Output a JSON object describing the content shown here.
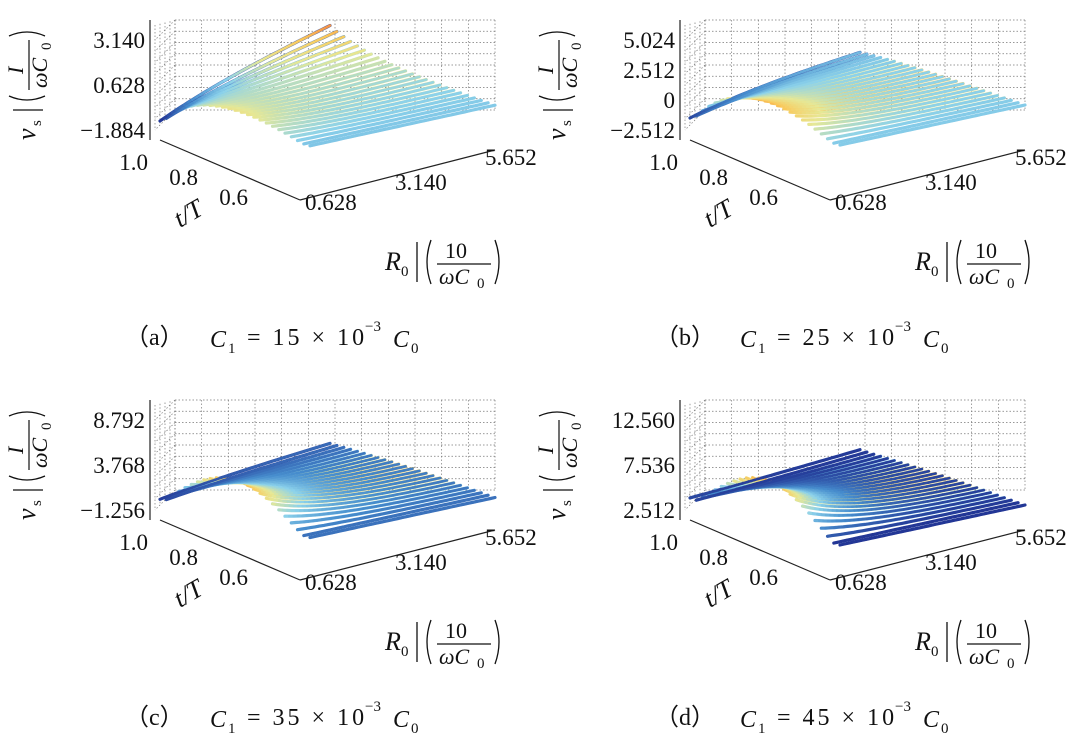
{
  "figure": {
    "z_unit_numerator": "I",
    "unit_omega": "ω",
    "unit_C0_letter": "C",
    "unit_C0_sub": "0",
    "z_var": "v",
    "z_var_sub": "s",
    "x_var": "R",
    "x_var_sub": "0",
    "x_unit_numerator": "10",
    "y_label": "t/T"
  },
  "colors": {
    "low": "#2b3e9e",
    "mid_low": "#7ec8e8",
    "mid": "#e8e38c",
    "mid_high": "#f6a04a",
    "high": "#c8243a",
    "peak": "#5a0a14",
    "grid": "#555555"
  },
  "chart_data": [
    {
      "type": "surface",
      "caption_label": "（a）",
      "caption_c1": "C",
      "caption_c1_sub": "1",
      "caption_eq": "= 15 × 10",
      "caption_exp": "−3",
      "caption_c0": "C",
      "caption_c0_sub": "0",
      "z_ticks": [
        "3.140",
        "0.628",
        "−1.884"
      ],
      "zlim": [
        -1.884,
        3.14
      ],
      "x_ticks": [
        "0.628",
        "3.140",
        "5.652"
      ],
      "xlim": [
        0.628,
        5.652
      ],
      "y_ticks": [
        "1.0",
        "0.8",
        "0.6"
      ],
      "ylim": [
        0.5,
        1.0
      ],
      "grid": true,
      "peak": {
        "x": 0.628,
        "t": 0.75,
        "z": 1.2
      },
      "ridge_high_side": {
        "x": 5.652,
        "t": 1.0,
        "z": 3.14
      },
      "trough": {
        "x": 0.628,
        "t": 1.0,
        "z": -1.884
      }
    },
    {
      "type": "surface",
      "caption_label": "（b）",
      "caption_c1": "C",
      "caption_c1_sub": "1",
      "caption_eq": "= 25 × 10",
      "caption_exp": "−3",
      "caption_c0": "C",
      "caption_c0_sub": "0",
      "z_ticks": [
        "5.024",
        "2.512",
        "0",
        "−2.512"
      ],
      "zlim": [
        -2.512,
        5.024
      ],
      "x_ticks": [
        "0.628",
        "3.140",
        "5.652"
      ],
      "xlim": [
        0.628,
        5.652
      ],
      "y_ticks": [
        "1.0",
        "0.8",
        "0.6"
      ],
      "ylim": [
        0.5,
        1.0
      ],
      "grid": true,
      "peak": {
        "x": 0.628,
        "t": 0.75,
        "z": 3.0
      },
      "trough": {
        "x": 0.628,
        "t": 1.0,
        "z": -2.512
      }
    },
    {
      "type": "surface",
      "caption_label": "（c）",
      "caption_c1": "C",
      "caption_c1_sub": "1",
      "caption_eq": "= 35 × 10",
      "caption_exp": "−3",
      "caption_c0": "C",
      "caption_c0_sub": "0",
      "z_ticks": [
        "8.792",
        "3.768",
        "−1.256"
      ],
      "zlim": [
        -1.256,
        8.792
      ],
      "x_ticks": [
        "0.628",
        "3.140",
        "5.652"
      ],
      "xlim": [
        0.628,
        5.652
      ],
      "y_ticks": [
        "1.0",
        "0.8",
        "0.6"
      ],
      "ylim": [
        0.5,
        1.0
      ],
      "grid": true,
      "peak": {
        "x": 0.628,
        "t": 0.75,
        "z": 6.5
      },
      "trough": {
        "x": 0.628,
        "t": 1.0,
        "z": -1.256
      }
    },
    {
      "type": "surface",
      "caption_label": "（d）",
      "caption_c1": "C",
      "caption_c1_sub": "1",
      "caption_eq": "= 45 × 10",
      "caption_exp": "−3",
      "caption_c0": "C",
      "caption_c0_sub": "0",
      "z_ticks": [
        "12.560",
        "7.536",
        "2.512"
      ],
      "zlim": [
        0,
        12.56
      ],
      "x_ticks": [
        "0.628",
        "3.140",
        "5.652"
      ],
      "xlim": [
        0.628,
        5.652
      ],
      "y_ticks": [
        "1.0",
        "0.8",
        "0.6"
      ],
      "ylim": [
        0.5,
        1.0
      ],
      "grid": true,
      "peak": {
        "x": 0.628,
        "t": 0.75,
        "z": 10.0
      },
      "trough": {
        "x": 0.628,
        "t": 1.0,
        "z": 0.5
      }
    }
  ]
}
